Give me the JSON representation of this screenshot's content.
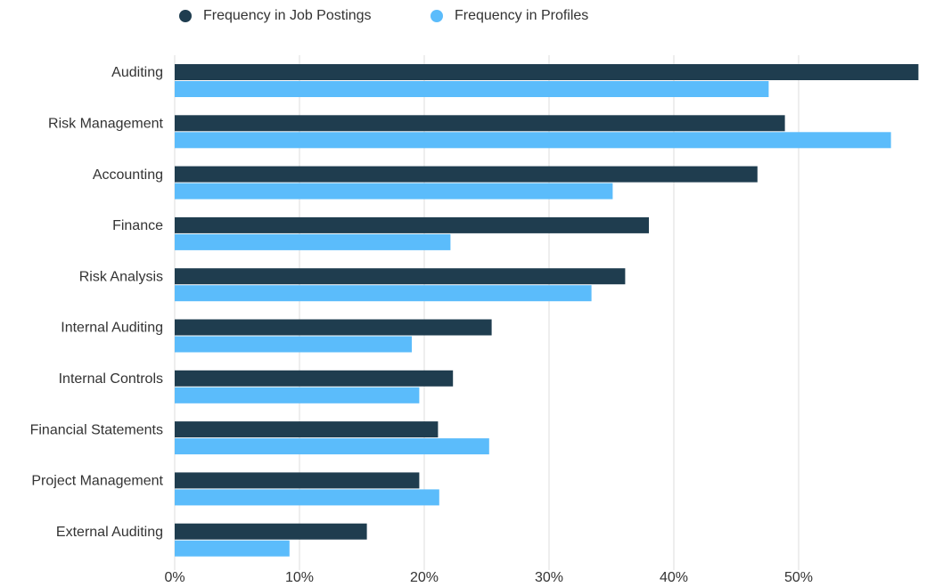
{
  "chart_data": {
    "type": "bar",
    "orientation": "horizontal",
    "categories": [
      "Auditing",
      "Risk Management",
      "Accounting",
      "Finance",
      "Risk Analysis",
      "Internal Auditing",
      "Internal Controls",
      "Financial Statements",
      "Project Management",
      "External Auditing"
    ],
    "series": [
      {
        "name": "Frequency in Job Postings",
        "color": "#1f3d4f",
        "values": [
          59.6,
          48.9,
          46.7,
          38.0,
          36.1,
          25.4,
          22.3,
          21.1,
          19.6,
          15.4
        ]
      },
      {
        "name": "Frequency in Profiles",
        "color": "#5bbcfb",
        "values": [
          47.6,
          57.4,
          35.1,
          22.1,
          33.4,
          19.0,
          19.6,
          25.2,
          21.2,
          9.2
        ]
      }
    ],
    "xlim": [
      0,
      60
    ],
    "xticks": [
      {
        "value": 0,
        "label": "0%"
      },
      {
        "value": 10,
        "label": "10%"
      },
      {
        "value": 20,
        "label": "20%"
      },
      {
        "value": 30,
        "label": "30%"
      },
      {
        "value": 40,
        "label": "40%"
      },
      {
        "value": 50,
        "label": "50%"
      }
    ],
    "grid": true,
    "legend": "top"
  }
}
